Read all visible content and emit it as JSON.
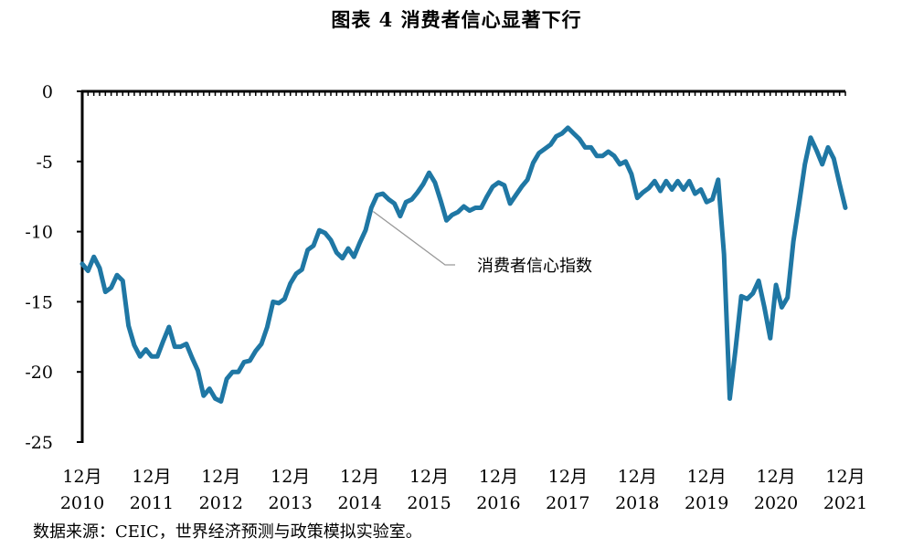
{
  "chart_data": {
    "type": "line",
    "title": "图表 4 消费者信心显著下行",
    "xlabel": "",
    "ylabel": "",
    "ylim": [
      -25,
      0
    ],
    "yticks": [
      0,
      -5,
      -10,
      -15,
      -20,
      -25
    ],
    "x_start": "2010-12",
    "xticks": [
      {
        "month": "12月",
        "year": "2010"
      },
      {
        "month": "12月",
        "year": "2011"
      },
      {
        "month": "12月",
        "year": "2012"
      },
      {
        "month": "12月",
        "year": "2013"
      },
      {
        "month": "12月",
        "year": "2014"
      },
      {
        "month": "12月",
        "year": "2015"
      },
      {
        "month": "12月",
        "year": "2016"
      },
      {
        "month": "12月",
        "year": "2017"
      },
      {
        "month": "12月",
        "year": "2018"
      },
      {
        "month": "12月",
        "year": "2019"
      },
      {
        "month": "12月",
        "year": "2020"
      },
      {
        "month": "12月",
        "year": "2021"
      }
    ],
    "series": [
      {
        "name": "消费者信心指数",
        "color": "#1f77a4",
        "values": [
          -12.3,
          -12.8,
          -11.8,
          -12.6,
          -14.3,
          -14.0,
          -13.1,
          -13.5,
          -16.7,
          -18.1,
          -18.9,
          -18.4,
          -18.9,
          -18.9,
          -17.8,
          -16.8,
          -18.2,
          -18.2,
          -18.0,
          -19.0,
          -19.9,
          -21.7,
          -21.2,
          -21.9,
          -22.1,
          -20.5,
          -20.0,
          -20.0,
          -19.3,
          -19.2,
          -18.5,
          -18.0,
          -16.8,
          -15.0,
          -15.1,
          -14.8,
          -13.7,
          -13.0,
          -12.7,
          -11.3,
          -11.0,
          -9.9,
          -10.1,
          -10.6,
          -11.5,
          -11.9,
          -11.2,
          -11.8,
          -10.8,
          -9.9,
          -8.3,
          -7.4,
          -7.3,
          -7.7,
          -8.0,
          -8.9,
          -7.9,
          -7.7,
          -7.2,
          -6.6,
          -5.8,
          -6.5,
          -7.8,
          -9.2,
          -8.8,
          -8.6,
          -8.2,
          -8.5,
          -8.3,
          -8.3,
          -7.5,
          -6.8,
          -6.5,
          -6.7,
          -8.0,
          -7.4,
          -6.8,
          -6.3,
          -5.1,
          -4.4,
          -4.1,
          -3.8,
          -3.2,
          -3.0,
          -2.6,
          -3.0,
          -3.4,
          -4.0,
          -4.0,
          -4.6,
          -4.6,
          -4.3,
          -4.6,
          -5.2,
          -5.0,
          -5.9,
          -7.6,
          -7.2,
          -6.9,
          -6.4,
          -7.1,
          -6.4,
          -7.0,
          -6.4,
          -7.0,
          -6.4,
          -7.3,
          -7.0,
          -7.9,
          -7.7,
          -6.3,
          -11.6,
          -21.9,
          -18.4,
          -14.6,
          -14.8,
          -14.4,
          -13.5,
          -15.4,
          -17.6,
          -13.8,
          -15.4,
          -14.7,
          -10.7,
          -8.0,
          -5.2,
          -3.3,
          -4.2,
          -5.2,
          -4.0,
          -4.8,
          -6.6,
          -8.3
        ]
      }
    ],
    "annotation": "消费者信心指数"
  },
  "source": "数据来源：CEIC，世界经济预测与政策模拟实验室。"
}
